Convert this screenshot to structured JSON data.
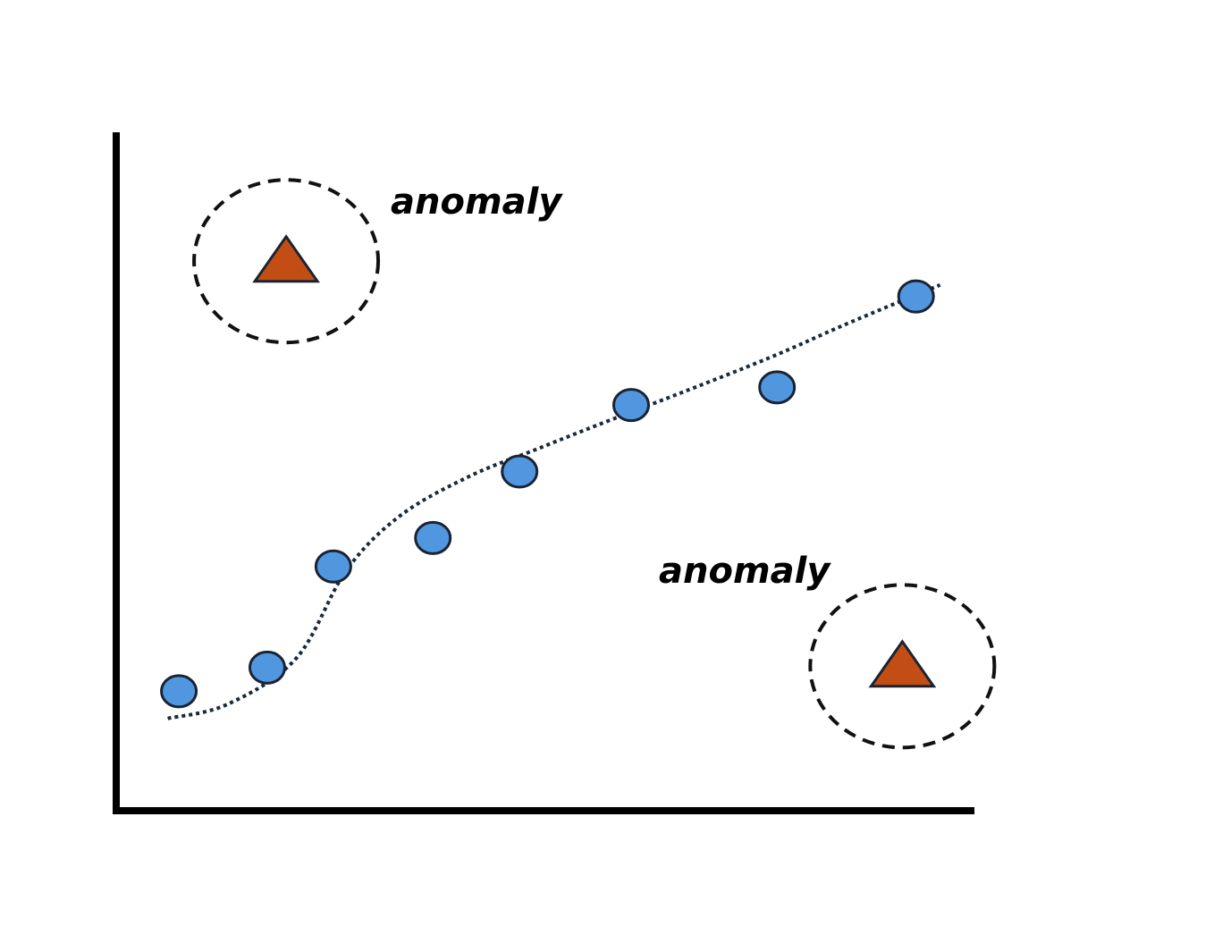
{
  "labels": {
    "anomaly_top": "anomaly",
    "anomaly_bottom": "anomaly"
  },
  "colors": {
    "background": "#ffffff",
    "axis": "#000000",
    "normal_point_fill": "#5197df",
    "point_stroke": "#1a2332",
    "anomaly_fill": "#c24e15",
    "trend_line": "#1a2a3a",
    "outline_circle": "#111111"
  },
  "markers": {
    "normal": "circle",
    "anomaly": "triangle"
  },
  "chart_data": {
    "type": "scatter",
    "x_ticks": false,
    "y_ticks": false,
    "grid": false,
    "xlim": [
      0,
      100
    ],
    "ylim": [
      0,
      100
    ],
    "normal_points": [
      {
        "x": 7.3,
        "y": 17.6
      },
      {
        "x": 17.6,
        "y": 21.1
      },
      {
        "x": 25.3,
        "y": 36.0
      },
      {
        "x": 36.9,
        "y": 40.2
      },
      {
        "x": 47.0,
        "y": 50.0
      },
      {
        "x": 60.0,
        "y": 59.8
      },
      {
        "x": 77.0,
        "y": 62.4
      },
      {
        "x": 93.2,
        "y": 75.8
      }
    ],
    "anomaly_points": [
      {
        "x": 19.8,
        "y": 81.0,
        "label": "anomaly"
      },
      {
        "x": 91.6,
        "y": 21.3,
        "label": "anomaly"
      }
    ],
    "trend_line": [
      {
        "x": 6.0,
        "y": 13.6
      },
      {
        "x": 13.0,
        "y": 15.7
      },
      {
        "x": 21.0,
        "y": 22.5
      },
      {
        "x": 26.8,
        "y": 35.4
      },
      {
        "x": 33.0,
        "y": 43.4
      },
      {
        "x": 41.0,
        "y": 49.2
      },
      {
        "x": 49.0,
        "y": 53.3
      },
      {
        "x": 57.0,
        "y": 57.3
      },
      {
        "x": 65.0,
        "y": 61.2
      },
      {
        "x": 76.0,
        "y": 66.7
      },
      {
        "x": 85.0,
        "y": 71.7
      },
      {
        "x": 96.0,
        "y": 77.5
      }
    ]
  }
}
